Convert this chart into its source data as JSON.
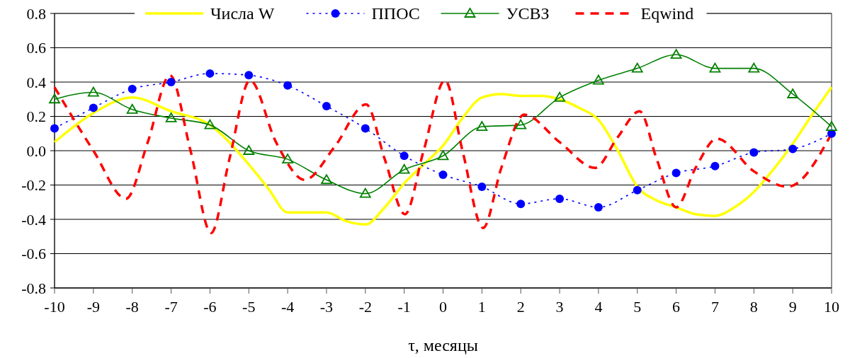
{
  "chart_data": {
    "type": "line",
    "xlabel": "τ, месяцы",
    "xlim": [
      -10,
      10
    ],
    "xticks": [
      -10,
      -9,
      -8,
      -7,
      -6,
      -5,
      -4,
      -3,
      -2,
      -1,
      0,
      1,
      2,
      3,
      4,
      5,
      6,
      7,
      8,
      9,
      10
    ],
    "ylim": [
      -0.8,
      0.8
    ],
    "yticks": [
      -0.8,
      -0.6,
      -0.4,
      -0.2,
      {
        "value": 0,
        "label": "0.0"
      },
      0.2,
      0.4,
      0.6,
      0.8
    ],
    "grid": "y",
    "legend": "top",
    "series": [
      {
        "name": "Числа W",
        "color": "#ffff00",
        "marker": "none",
        "line_style": "solid",
        "x": [
          -10,
          -9,
          -8,
          -7,
          -6,
          -5,
          -4.5,
          -4,
          -3.5,
          -3,
          -2.5,
          -2,
          -1.5,
          -1,
          -0.5,
          0,
          0.5,
          1,
          1.5,
          2,
          2.5,
          3,
          3.5,
          4,
          4.5,
          5,
          5.5,
          6,
          6.5,
          7,
          7.5,
          8,
          8.5,
          9,
          9.5,
          10
        ],
        "values": [
          0.05,
          0.22,
          0.31,
          0.23,
          0.15,
          -0.08,
          -0.22,
          -0.36,
          -0.36,
          -0.36,
          -0.41,
          -0.43,
          -0.33,
          -0.19,
          -0.08,
          0.03,
          0.19,
          0.31,
          0.33,
          0.32,
          0.32,
          0.3,
          0.25,
          0.18,
          0.0,
          -0.21,
          -0.29,
          -0.33,
          -0.37,
          -0.38,
          -0.33,
          -0.24,
          -0.11,
          0.04,
          0.21,
          0.37
        ]
      },
      {
        "name": "ППОС",
        "color": "#0000ff",
        "marker": "circle",
        "line_style": "dotted",
        "x": [
          -10,
          -9,
          -8,
          -7,
          -6,
          -5,
          -4,
          -3,
          -2,
          -1,
          0,
          1,
          2,
          3,
          4,
          5,
          6,
          7,
          8,
          9,
          10
        ],
        "values": [
          0.13,
          0.25,
          0.36,
          0.4,
          0.45,
          0.44,
          0.38,
          0.26,
          0.13,
          -0.03,
          -0.14,
          -0.21,
          -0.31,
          -0.28,
          -0.33,
          -0.23,
          -0.13,
          -0.09,
          -0.01,
          0.01,
          0.1
        ]
      },
      {
        "name": "УСВЗ",
        "color": "#008000",
        "marker": "triangle",
        "line_style": "solid",
        "x": [
          -10,
          -9,
          -8,
          -7,
          -6,
          -5,
          -4,
          -3,
          -2,
          -1,
          0,
          1,
          2,
          3,
          4,
          5,
          6,
          7,
          8,
          9,
          10
        ],
        "values": [
          0.3,
          0.34,
          0.24,
          0.19,
          0.15,
          0.0,
          -0.05,
          -0.17,
          -0.25,
          -0.11,
          -0.03,
          0.14,
          0.15,
          0.31,
          0.41,
          0.48,
          0.56,
          0.48,
          0.48,
          0.33,
          0.14
        ]
      },
      {
        "name": "Eqwind",
        "color": "#ff0000",
        "marker": "none",
        "line_style": "dashed",
        "x": [
          -10,
          -9,
          -8.16,
          -7.6,
          -7.03,
          -6.5,
          -5.97,
          -5.5,
          -4.97,
          -4.3,
          -3.56,
          -2.8,
          -1.98,
          -1.5,
          -0.98,
          -0.5,
          0.05,
          0.5,
          1.03,
          1.5,
          2.09,
          3,
          3.91,
          4.5,
          5.06,
          5.5,
          6,
          6.5,
          7.05,
          8,
          8.87,
          10
        ],
        "values": [
          0.37,
          0.0,
          -0.28,
          0.05,
          0.44,
          0.0,
          -0.48,
          -0.05,
          0.41,
          0.05,
          -0.17,
          0.02,
          0.27,
          -0.05,
          -0.37,
          0.0,
          0.41,
          0.0,
          -0.45,
          -0.1,
          0.21,
          0.05,
          -0.1,
          0.08,
          0.23,
          -0.05,
          -0.33,
          -0.1,
          0.07,
          -0.12,
          -0.21,
          0.1
        ]
      }
    ]
  }
}
